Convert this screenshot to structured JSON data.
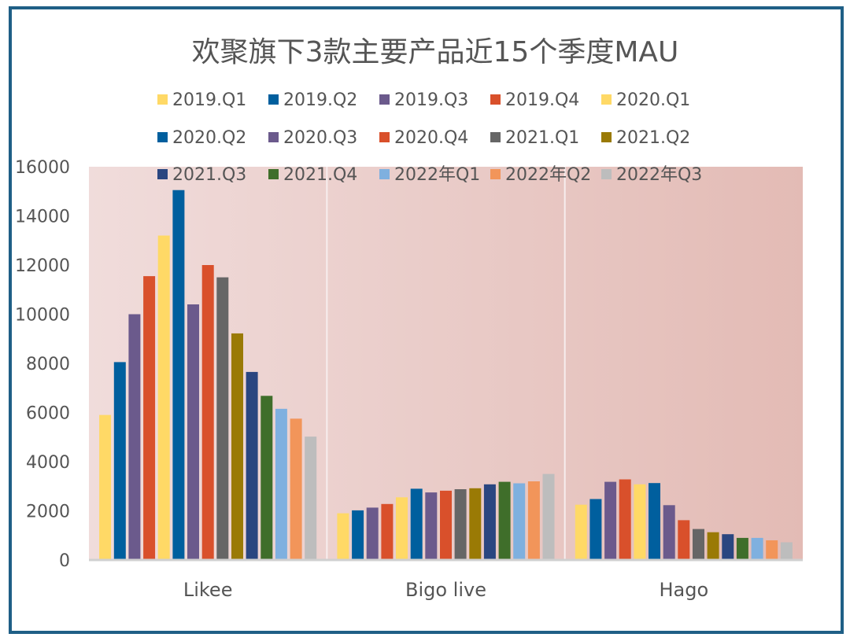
{
  "chart_data": {
    "type": "bar",
    "title": "欢聚旗下3款主要产品近15个季度MAU",
    "categories": [
      "Likee",
      "Bigo live",
      "Hago"
    ],
    "ylim": [
      0,
      16000
    ],
    "yticks": [
      0,
      2000,
      4000,
      6000,
      8000,
      10000,
      12000,
      14000,
      16000
    ],
    "legend_position": "top",
    "grid": false,
    "series": [
      {
        "name": "2019.Q1",
        "color": "#ffd966",
        "values": [
          5900,
          1900,
          2250
        ]
      },
      {
        "name": "2019.Q2",
        "color": "#005f9e",
        "values": [
          8050,
          2020,
          2480
        ]
      },
      {
        "name": "2019.Q3",
        "color": "#6b5a8c",
        "values": [
          10000,
          2130,
          3180
        ]
      },
      {
        "name": "2019.Q4",
        "color": "#d9502b",
        "values": [
          11550,
          2280,
          3280
        ]
      },
      {
        "name": "2020.Q1",
        "color": "#ffd966",
        "values": [
          13200,
          2550,
          3080
        ]
      },
      {
        "name": "2020.Q2",
        "color": "#005f9e",
        "values": [
          15050,
          2900,
          3130
        ]
      },
      {
        "name": "2020.Q3",
        "color": "#6b5a8c",
        "values": [
          10400,
          2750,
          2230
        ]
      },
      {
        "name": "2020.Q4",
        "color": "#d9502b",
        "values": [
          12000,
          2820,
          1620
        ]
      },
      {
        "name": "2021.Q1",
        "color": "#666666",
        "values": [
          11500,
          2880,
          1260
        ]
      },
      {
        "name": "2021.Q2",
        "color": "#9a7a05",
        "values": [
          9220,
          2920,
          1130
        ]
      },
      {
        "name": "2021.Q3",
        "color": "#2a4680",
        "values": [
          7650,
          3080,
          1050
        ]
      },
      {
        "name": "2021.Q4",
        "color": "#3f6e2a",
        "values": [
          6680,
          3180,
          900
        ]
      },
      {
        "name": "2022年Q1",
        "color": "#7fb0df",
        "values": [
          6150,
          3120,
          900
        ]
      },
      {
        "name": "2022年Q2",
        "color": "#f2955a",
        "values": [
          5750,
          3200,
          800
        ]
      },
      {
        "name": "2022年Q3",
        "color": "#bdbdbd",
        "values": [
          5020,
          3500,
          720
        ]
      }
    ]
  }
}
